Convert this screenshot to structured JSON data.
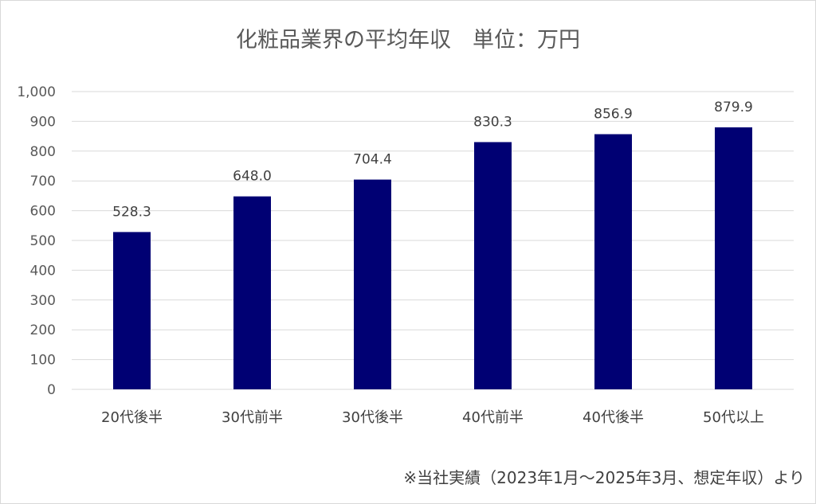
{
  "chart_data": {
    "type": "bar",
    "title": "化粧品業界の平均年収　単位：万円",
    "categories": [
      "20代後半",
      "30代前半",
      "30代後半",
      "40代前半",
      "40代後半",
      "50代以上"
    ],
    "values": [
      528.3,
      648.0,
      704.4,
      830.3,
      856.9,
      879.9
    ],
    "value_labels": [
      "528.3",
      "648.0",
      "704.4",
      "830.3",
      "856.9",
      "879.9"
    ],
    "ylim": [
      0,
      1000
    ],
    "yticks": [
      0,
      100,
      200,
      300,
      400,
      500,
      600,
      700,
      800,
      900,
      1000
    ],
    "ytick_labels": [
      "0",
      "100",
      "200",
      "300",
      "400",
      "500",
      "600",
      "700",
      "800",
      "900",
      "1,000"
    ],
    "grid": true,
    "legend": "none",
    "bar_color": "#000073",
    "footnote": "※当社実績（2023年1月～2025年3月、想定年収）より"
  }
}
